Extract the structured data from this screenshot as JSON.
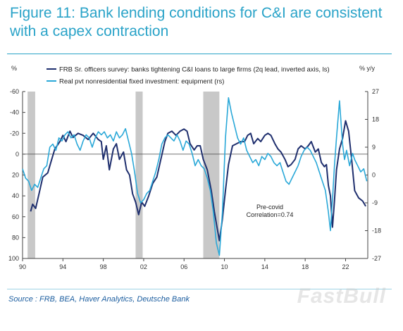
{
  "title": "Figure 11: Bank lending conditions for C&I are consistent with a capex contraction",
  "source": "Source : FRB, BEA, Haver Analytics, Deutsche Bank",
  "watermark": "FastBull",
  "colors": {
    "title": "#2aa3c8",
    "series_1": "#1f2f6e",
    "series_2": "#2aa8d8",
    "recession_band": "#c8c8c8",
    "source_text": "#1e5fa0"
  },
  "chart_data": {
    "type": "line",
    "left_axis_unit": "%",
    "right_axis_unit": "% y/y",
    "left_axis_inverted": true,
    "ylim_left": [
      100,
      -60
    ],
    "ylim_right": [
      -27,
      27
    ],
    "xlim": [
      1990,
      2024.2
    ],
    "x_ticks": [
      {
        "value": 1990,
        "label": "90"
      },
      {
        "value": 1994,
        "label": "94"
      },
      {
        "value": 1998,
        "label": "98"
      },
      {
        "value": 2002,
        "label": "02"
      },
      {
        "value": 2006,
        "label": "06"
      },
      {
        "value": 2010,
        "label": "10"
      },
      {
        "value": 2014,
        "label": "14"
      },
      {
        "value": 2018,
        "label": "18"
      },
      {
        "value": 2022,
        "label": "22"
      }
    ],
    "y_ticks_left": [
      -60,
      -40,
      -20,
      0,
      20,
      40,
      60,
      80,
      100
    ],
    "y_ticks_right": [
      27,
      18,
      9,
      0,
      -9,
      -18,
      -27
    ],
    "zero_line_left": 0,
    "recessions": [
      [
        1990.5,
        1991.25
      ],
      [
        2001.2,
        2001.9
      ],
      [
        2007.9,
        2009.5
      ]
    ],
    "annotation": [
      "Pre-covid",
      "Correlation=0.74"
    ],
    "series": [
      {
        "name": "FRB Sr. officers survey: banks tightening C&I loans to large firms (2q lead, inverted axis, ls)",
        "axis": "left",
        "color": "#1f2f6e",
        "points": [
          [
            1990.8,
            55
          ],
          [
            1991.0,
            48
          ],
          [
            1991.3,
            52
          ],
          [
            1991.7,
            35
          ],
          [
            1992.0,
            22
          ],
          [
            1992.5,
            18
          ],
          [
            1992.8,
            8
          ],
          [
            1993.2,
            -5
          ],
          [
            1993.7,
            -12
          ],
          [
            1994.0,
            -18
          ],
          [
            1994.3,
            -12
          ],
          [
            1994.7,
            -22
          ],
          [
            1995.0,
            -16
          ],
          [
            1995.5,
            -20
          ],
          [
            1996.0,
            -18
          ],
          [
            1996.5,
            -14
          ],
          [
            1997.0,
            -20
          ],
          [
            1997.5,
            -14
          ],
          [
            1997.8,
            -12
          ],
          [
            1998.0,
            5
          ],
          [
            1998.3,
            -8
          ],
          [
            1998.6,
            15
          ],
          [
            1999.0,
            -5
          ],
          [
            1999.3,
            -10
          ],
          [
            1999.6,
            5
          ],
          [
            2000.0,
            -2
          ],
          [
            2000.3,
            15
          ],
          [
            2000.6,
            20
          ],
          [
            2000.9,
            38
          ],
          [
            2001.2,
            46
          ],
          [
            2001.5,
            58
          ],
          [
            2001.8,
            46
          ],
          [
            2002.1,
            50
          ],
          [
            2002.5,
            40
          ],
          [
            2002.9,
            28
          ],
          [
            2003.3,
            22
          ],
          [
            2003.7,
            5
          ],
          [
            2004.1,
            -12
          ],
          [
            2004.4,
            -20
          ],
          [
            2004.8,
            -22
          ],
          [
            2005.2,
            -18
          ],
          [
            2005.6,
            -22
          ],
          [
            2006.0,
            -24
          ],
          [
            2006.3,
            -22
          ],
          [
            2006.6,
            -10
          ],
          [
            2007.0,
            -4
          ],
          [
            2007.3,
            -8
          ],
          [
            2007.6,
            -8
          ],
          [
            2007.9,
            5
          ],
          [
            2008.3,
            15
          ],
          [
            2008.7,
            35
          ],
          [
            2009.0,
            55
          ],
          [
            2009.3,
            72
          ],
          [
            2009.5,
            83
          ],
          [
            2009.8,
            62
          ],
          [
            2010.1,
            35
          ],
          [
            2010.4,
            10
          ],
          [
            2010.8,
            -8
          ],
          [
            2011.2,
            -10
          ],
          [
            2011.6,
            -12
          ],
          [
            2012.0,
            -12
          ],
          [
            2012.3,
            -18
          ],
          [
            2012.6,
            -20
          ],
          [
            2012.9,
            -10
          ],
          [
            2013.3,
            -15
          ],
          [
            2013.6,
            -12
          ],
          [
            2014.0,
            -18
          ],
          [
            2014.3,
            -20
          ],
          [
            2014.6,
            -18
          ],
          [
            2015.0,
            -10
          ],
          [
            2015.3,
            -5
          ],
          [
            2015.6,
            -2
          ],
          [
            2016.0,
            5
          ],
          [
            2016.3,
            12
          ],
          [
            2016.6,
            10
          ],
          [
            2017.0,
            5
          ],
          [
            2017.3,
            -5
          ],
          [
            2017.6,
            -8
          ],
          [
            2018.0,
            -5
          ],
          [
            2018.3,
            -8
          ],
          [
            2018.6,
            -12
          ],
          [
            2019.0,
            -2
          ],
          [
            2019.3,
            -5
          ],
          [
            2019.6,
            8
          ],
          [
            2019.9,
            12
          ],
          [
            2020.1,
            10
          ],
          [
            2020.3,
            30
          ],
          [
            2020.5,
            40
          ],
          [
            2020.7,
            70
          ],
          [
            2020.9,
            45
          ],
          [
            2021.1,
            15
          ],
          [
            2021.4,
            -5
          ],
          [
            2021.7,
            -15
          ],
          [
            2022.0,
            -32
          ],
          [
            2022.3,
            -22
          ],
          [
            2022.6,
            5
          ],
          [
            2022.9,
            35
          ],
          [
            2023.3,
            42
          ],
          [
            2023.7,
            45
          ],
          [
            2024.0,
            50
          ]
        ]
      },
      {
        "name": "Real pvt nonresidential fixed investment: equipment (rs)",
        "axis": "right",
        "color": "#2aa8d8",
        "points": [
          [
            1990.0,
            2
          ],
          [
            1990.3,
            -1
          ],
          [
            1990.6,
            -2
          ],
          [
            1990.9,
            -5
          ],
          [
            1991.2,
            -3
          ],
          [
            1991.5,
            -4
          ],
          [
            1991.8,
            -1
          ],
          [
            1992.1,
            2
          ],
          [
            1992.4,
            3
          ],
          [
            1992.7,
            9
          ],
          [
            1993.0,
            10
          ],
          [
            1993.3,
            8
          ],
          [
            1993.6,
            12
          ],
          [
            1993.9,
            11
          ],
          [
            1994.2,
            13
          ],
          [
            1994.5,
            14
          ],
          [
            1994.8,
            12
          ],
          [
            1995.1,
            13
          ],
          [
            1995.4,
            10
          ],
          [
            1995.7,
            8
          ],
          [
            1996.0,
            11
          ],
          [
            1996.3,
            13
          ],
          [
            1996.6,
            12
          ],
          [
            1996.9,
            9
          ],
          [
            1997.2,
            12
          ],
          [
            1997.5,
            14
          ],
          [
            1997.8,
            13
          ],
          [
            1998.1,
            14
          ],
          [
            1998.4,
            12
          ],
          [
            1998.7,
            13
          ],
          [
            1999.0,
            11
          ],
          [
            1999.3,
            14
          ],
          [
            1999.6,
            12
          ],
          [
            1999.9,
            13
          ],
          [
            2000.2,
            15
          ],
          [
            2000.5,
            11
          ],
          [
            2000.8,
            7
          ],
          [
            2001.1,
            1
          ],
          [
            2001.4,
            -6
          ],
          [
            2001.7,
            -9
          ],
          [
            2002.0,
            -8
          ],
          [
            2002.3,
            -6
          ],
          [
            2002.6,
            -5
          ],
          [
            2002.9,
            -2
          ],
          [
            2003.2,
            1
          ],
          [
            2003.5,
            5
          ],
          [
            2003.8,
            10
          ],
          [
            2004.1,
            12
          ],
          [
            2004.4,
            13
          ],
          [
            2004.7,
            12
          ],
          [
            2005.0,
            11
          ],
          [
            2005.3,
            13
          ],
          [
            2005.6,
            11
          ],
          [
            2005.9,
            8
          ],
          [
            2006.2,
            11
          ],
          [
            2006.5,
            10
          ],
          [
            2006.8,
            7
          ],
          [
            2007.1,
            3
          ],
          [
            2007.4,
            5
          ],
          [
            2007.7,
            3
          ],
          [
            2008.0,
            2
          ],
          [
            2008.3,
            -1
          ],
          [
            2008.6,
            -5
          ],
          [
            2008.9,
            -12
          ],
          [
            2009.2,
            -22
          ],
          [
            2009.5,
            -26
          ],
          [
            2009.8,
            -12
          ],
          [
            2010.1,
            12
          ],
          [
            2010.4,
            25
          ],
          [
            2010.7,
            20
          ],
          [
            2011.0,
            16
          ],
          [
            2011.3,
            12
          ],
          [
            2011.6,
            10
          ],
          [
            2011.9,
            12
          ],
          [
            2012.2,
            8
          ],
          [
            2012.5,
            6
          ],
          [
            2012.8,
            4
          ],
          [
            2013.1,
            5
          ],
          [
            2013.4,
            3
          ],
          [
            2013.7,
            6
          ],
          [
            2014.0,
            5
          ],
          [
            2014.3,
            7
          ],
          [
            2014.6,
            6
          ],
          [
            2014.9,
            4
          ],
          [
            2015.2,
            3
          ],
          [
            2015.5,
            4
          ],
          [
            2015.8,
            1
          ],
          [
            2016.1,
            -2
          ],
          [
            2016.4,
            -3
          ],
          [
            2016.7,
            -1
          ],
          [
            2017.0,
            1
          ],
          [
            2017.3,
            3
          ],
          [
            2017.6,
            6
          ],
          [
            2017.9,
            8
          ],
          [
            2018.2,
            9
          ],
          [
            2018.5,
            8
          ],
          [
            2018.8,
            6
          ],
          [
            2019.1,
            4
          ],
          [
            2019.4,
            1
          ],
          [
            2019.7,
            -2
          ],
          [
            2020.0,
            -5
          ],
          [
            2020.3,
            -12
          ],
          [
            2020.5,
            -18
          ],
          [
            2020.7,
            -8
          ],
          [
            2020.9,
            3
          ],
          [
            2021.1,
            12
          ],
          [
            2021.4,
            24
          ],
          [
            2021.7,
            10
          ],
          [
            2021.9,
            5
          ],
          [
            2022.1,
            8
          ],
          [
            2022.4,
            3
          ],
          [
            2022.7,
            7
          ],
          [
            2022.9,
            5
          ],
          [
            2023.2,
            3
          ],
          [
            2023.5,
            1
          ],
          [
            2023.8,
            2
          ],
          [
            2024.1,
            -2
          ]
        ]
      }
    ]
  }
}
